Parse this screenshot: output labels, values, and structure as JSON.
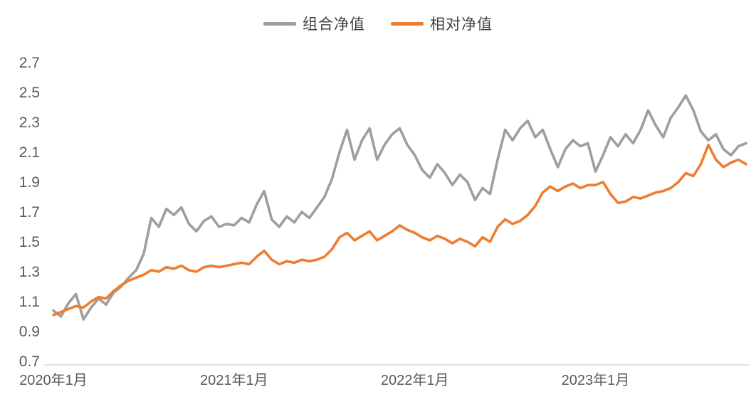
{
  "chart_data": {
    "type": "line",
    "title": "",
    "grid": false,
    "legend_position": "top-center",
    "x_axis": {
      "unit": "months since 2020-01",
      "x0": 0,
      "dx": 0.5,
      "xlim": [
        0,
        46
      ],
      "ticks": [
        {
          "x": 0,
          "label": "2020年1月"
        },
        {
          "x": 12,
          "label": "2021年1月"
        },
        {
          "x": 24,
          "label": "2022年1月"
        },
        {
          "x": 36,
          "label": "2023年1月"
        }
      ]
    },
    "y_axis": {
      "ylim": [
        0.7,
        2.7
      ],
      "ticks": [
        0.7,
        0.9,
        1.1,
        1.3,
        1.5,
        1.7,
        1.9,
        2.1,
        2.3,
        2.5,
        2.7
      ],
      "tick_decimals": 1
    },
    "series": [
      {
        "name": "组合净值",
        "color": "#9E9E9E",
        "values": [
          1.04,
          1.0,
          1.09,
          1.15,
          0.98,
          1.06,
          1.12,
          1.08,
          1.16,
          1.2,
          1.26,
          1.31,
          1.42,
          1.66,
          1.6,
          1.72,
          1.68,
          1.73,
          1.62,
          1.57,
          1.64,
          1.67,
          1.6,
          1.62,
          1.61,
          1.66,
          1.63,
          1.75,
          1.84,
          1.65,
          1.6,
          1.67,
          1.63,
          1.7,
          1.66,
          1.73,
          1.8,
          1.92,
          2.1,
          2.25,
          2.05,
          2.18,
          2.26,
          2.05,
          2.15,
          2.22,
          2.26,
          2.15,
          2.08,
          1.98,
          1.93,
          2.02,
          1.96,
          1.88,
          1.95,
          1.9,
          1.78,
          1.86,
          1.82,
          2.05,
          2.25,
          2.18,
          2.26,
          2.31,
          2.2,
          2.25,
          2.12,
          2.0,
          2.12,
          2.18,
          2.14,
          2.16,
          1.97,
          2.08,
          2.2,
          2.14,
          2.22,
          2.16,
          2.25,
          2.38,
          2.28,
          2.2,
          2.33,
          2.4,
          2.48,
          2.38,
          2.24,
          2.18,
          2.22,
          2.12,
          2.08,
          2.14,
          2.16
        ]
      },
      {
        "name": "相对净值",
        "color": "#ED7D31",
        "values": [
          1.01,
          1.03,
          1.05,
          1.07,
          1.06,
          1.1,
          1.13,
          1.12,
          1.17,
          1.21,
          1.24,
          1.26,
          1.28,
          1.31,
          1.3,
          1.33,
          1.32,
          1.34,
          1.31,
          1.3,
          1.33,
          1.34,
          1.33,
          1.34,
          1.35,
          1.36,
          1.35,
          1.4,
          1.44,
          1.38,
          1.35,
          1.37,
          1.36,
          1.38,
          1.37,
          1.38,
          1.4,
          1.45,
          1.53,
          1.56,
          1.51,
          1.54,
          1.57,
          1.51,
          1.54,
          1.57,
          1.61,
          1.58,
          1.56,
          1.53,
          1.51,
          1.54,
          1.52,
          1.49,
          1.52,
          1.5,
          1.47,
          1.53,
          1.5,
          1.6,
          1.65,
          1.62,
          1.64,
          1.68,
          1.74,
          1.83,
          1.87,
          1.84,
          1.87,
          1.89,
          1.86,
          1.88,
          1.88,
          1.9,
          1.82,
          1.76,
          1.77,
          1.8,
          1.79,
          1.81,
          1.83,
          1.84,
          1.86,
          1.9,
          1.96,
          1.94,
          2.02,
          2.15,
          2.05,
          2.0,
          2.03,
          2.05,
          2.02
        ]
      }
    ]
  },
  "colors": {
    "background": "#FFFFFF",
    "tick_text": "#595959",
    "legend_text": "#404040",
    "axis_line": "#D9D9D9"
  }
}
